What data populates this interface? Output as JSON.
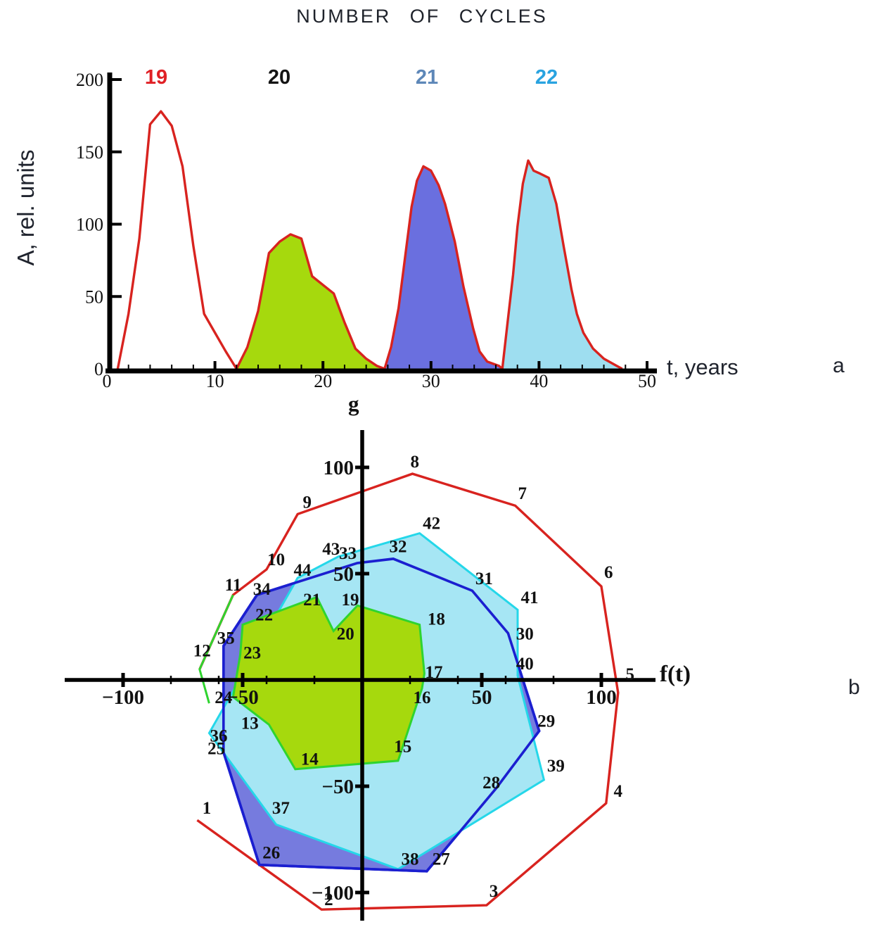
{
  "title": "NUMBER OF CYCLES",
  "chart_data": {
    "panel_a": {
      "type": "area",
      "ylabel": "A, rel. units",
      "xlabel": "t, years",
      "corner": "a",
      "xlim": [
        0,
        50
      ],
      "ylim": [
        0,
        200
      ],
      "xticks": [
        0,
        10,
        20,
        30,
        40,
        50
      ],
      "yticks": [
        0,
        50,
        100,
        150,
        200
      ],
      "xtick_minor_step": 2,
      "line_color": "#d8231f",
      "cycle_headers": [
        {
          "text": "19",
          "color": "#e02126"
        },
        {
          "text": "20",
          "color": "#141414"
        },
        {
          "text": "21",
          "color": "#5d87b8"
        },
        {
          "text": "22",
          "color": "#29a3e0"
        }
      ],
      "series": [
        {
          "name": "cycle 19",
          "fill": "none",
          "points": [
            [
              1,
              0
            ],
            [
              2,
              38
            ],
            [
              3,
              90
            ],
            [
              4,
              169
            ],
            [
              5,
              178
            ],
            [
              6,
              168
            ],
            [
              7,
              140
            ],
            [
              8,
              85
            ],
            [
              9,
              38
            ],
            [
              10,
              25
            ],
            [
              11,
              12
            ],
            [
              12,
              0
            ]
          ]
        },
        {
          "name": "cycle 20",
          "fill": "#a6d90d",
          "points": [
            [
              12,
              0
            ],
            [
              13,
              15
            ],
            [
              14,
              40
            ],
            [
              15,
              80
            ],
            [
              16,
              88
            ],
            [
              17,
              93
            ],
            [
              18,
              90
            ],
            [
              19,
              64
            ],
            [
              20,
              58
            ],
            [
              21,
              52
            ],
            [
              22,
              32
            ],
            [
              23,
              14
            ],
            [
              24,
              7
            ],
            [
              25,
              2
            ],
            [
              25.7,
              0
            ]
          ]
        },
        {
          "name": "cycle 21",
          "fill": "#6a6fdf",
          "points": [
            [
              25.7,
              0
            ],
            [
              26.3,
              15
            ],
            [
              27,
              42
            ],
            [
              27.7,
              83
            ],
            [
              28.2,
              112
            ],
            [
              28.7,
              130
            ],
            [
              29.3,
              140
            ],
            [
              30,
              137
            ],
            [
              30.7,
              127
            ],
            [
              31.3,
              114
            ],
            [
              32.2,
              88
            ],
            [
              33,
              57
            ],
            [
              33.9,
              28
            ],
            [
              34.5,
              12
            ],
            [
              35.2,
              5
            ],
            [
              36.3,
              2
            ],
            [
              36.6,
              0
            ]
          ]
        },
        {
          "name": "cycle 22",
          "fill": "#9edef0",
          "points": [
            [
              36.6,
              0
            ],
            [
              37.1,
              33
            ],
            [
              37.6,
              65
            ],
            [
              38,
              98
            ],
            [
              38.5,
              128
            ],
            [
              39,
              144
            ],
            [
              39.5,
              137
            ],
            [
              40.1,
              135
            ],
            [
              40.9,
              132
            ],
            [
              41.6,
              114
            ],
            [
              42.3,
              84
            ],
            [
              43,
              55
            ],
            [
              43.5,
              38
            ],
            [
              44.1,
              25
            ],
            [
              45,
              14
            ],
            [
              46,
              7
            ],
            [
              47.2,
              2
            ],
            [
              47.7,
              0
            ]
          ]
        }
      ]
    },
    "panel_b": {
      "type": "phase-portrait",
      "xlabel": "f(t)",
      "ylabel": "g",
      "corner": "b",
      "xlim": [
        -124,
        122
      ],
      "ylim": [
        -113,
        116
      ],
      "xticks": [
        -100,
        -50,
        50,
        100
      ],
      "xticks_minor": [
        -80,
        -60,
        -40,
        -20,
        20,
        40,
        60,
        80
      ],
      "yticks": [
        -100,
        -50,
        50,
        100
      ],
      "polygons": [
        {
          "name": "cycle 21",
          "stroke": "#1b1fd0",
          "fill": "#767bde",
          "closed": true,
          "restroke": true,
          "points": [
            {
              "n": 25,
              "x": -58,
              "y": -34,
              "lx": -61,
              "ly": -32
            },
            {
              "n": 26,
              "x": -43,
              "y": -87,
              "lx": -38,
              "ly": -81
            },
            {
              "n": 27,
              "x": 27,
              "y": -90,
              "lx": 33,
              "ly": -84
            },
            {
              "n": 28,
              "x": 56,
              "y": -51,
              "lx": 54,
              "ly": -48
            },
            {
              "n": 29,
              "x": 74,
              "y": -24,
              "lx": 77,
              "ly": -19
            },
            {
              "n": 30,
              "x": 61,
              "y": 22,
              "lx": 68,
              "ly": 22
            },
            {
              "n": 31,
              "x": 46,
              "y": 42,
              "lx": 51,
              "ly": 48
            },
            {
              "n": 32,
              "x": 13,
              "y": 57,
              "lx": 15,
              "ly": 63
            },
            {
              "n": 33,
              "x": -2,
              "y": 55,
              "lx": -6,
              "ly": 60
            },
            {
              "n": 34,
              "x": -44,
              "y": 40,
              "lx": -42,
              "ly": 43
            },
            {
              "n": 35,
              "x": -58,
              "y": 16,
              "lx": -57,
              "ly": 20
            }
          ]
        },
        {
          "name": "cycle 22",
          "stroke": "#25d7e9",
          "fill": "#a6e6f4",
          "closed": true,
          "points": [
            {
              "n": 36,
              "x": -64,
              "y": -25,
              "lx": -60,
              "ly": -26
            },
            {
              "n": 37,
              "x": -36,
              "y": -68,
              "lx": -34,
              "ly": -60
            },
            {
              "n": 38,
              "x": 15,
              "y": -89,
              "lx": 20,
              "ly": -84
            },
            {
              "n": 39,
              "x": 76,
              "y": -47,
              "lx": 81,
              "ly": -40
            },
            {
              "n": 40,
              "x": 65,
              "y": 2,
              "lx": 68,
              "ly": 8
            },
            {
              "n": 41,
              "x": 65,
              "y": 33,
              "lx": 70,
              "ly": 39
            },
            {
              "n": 42,
              "x": 24,
              "y": 69,
              "lx": 29,
              "ly": 74
            },
            {
              "n": 43,
              "x": -10,
              "y": 58,
              "lx": -13,
              "ly": 62
            },
            {
              "n": 44,
              "x": -27,
              "y": 48,
              "lx": -25,
              "ly": 52
            }
          ]
        },
        {
          "name": "cycle 20",
          "stroke": "#2fd42f",
          "fill": "#a6d90d",
          "closed": true,
          "points": [
            {
              "n": 13,
              "x": -39,
              "y": -21,
              "lx": -47,
              "ly": -20
            },
            {
              "n": 14,
              "x": -28,
              "y": -42,
              "lx": -22,
              "ly": -37
            },
            {
              "n": 15,
              "x": 15,
              "y": -38,
              "lx": 17,
              "ly": -31
            },
            {
              "n": 16,
              "x": 25,
              "y": -4,
              "lx": 25,
              "ly": -8
            },
            {
              "n": 17,
              "x": 26,
              "y": 3,
              "lx": 30,
              "ly": 4
            },
            {
              "n": 18,
              "x": 24,
              "y": 26,
              "lx": 31,
              "ly": 29
            },
            {
              "n": 19,
              "x": -2,
              "y": 35,
              "lx": -5,
              "ly": 38
            },
            {
              "n": 20,
              "x": -12,
              "y": 23,
              "lx": -7,
              "ly": 22
            },
            {
              "n": 21,
              "x": -19,
              "y": 39,
              "lx": -21,
              "ly": 38
            },
            {
              "n": 22,
              "x": -50,
              "y": 26,
              "lx": -41,
              "ly": 31
            },
            {
              "n": 23,
              "x": -51,
              "y": 12,
              "lx": -46,
              "ly": 13
            },
            {
              "n": 24,
              "x": -54,
              "y": -8,
              "lx": -58,
              "ly": -8
            }
          ]
        },
        {
          "name": "cycle 19",
          "stroke": "#d8231f",
          "fill": "none",
          "closed": false,
          "points": [
            {
              "n": 1,
              "x": -69,
              "y": -66,
              "lx": -65,
              "ly": -60
            },
            {
              "n": 2,
              "x": -17,
              "y": -108,
              "lx": -14,
              "ly": -103
            },
            {
              "n": 3,
              "x": 52,
              "y": -106,
              "lx": 55,
              "ly": -99
            },
            {
              "n": 4,
              "x": 102,
              "y": -58,
              "lx": 107,
              "ly": -52
            },
            {
              "n": 5,
              "x": 107,
              "y": -6,
              "lx": 112,
              "ly": 3
            },
            {
              "n": 6,
              "x": 100,
              "y": 44,
              "lx": 103,
              "ly": 51
            },
            {
              "n": 7,
              "x": 64,
              "y": 82,
              "lx": 67,
              "ly": 88
            },
            {
              "n": 8,
              "x": 21,
              "y": 97,
              "lx": 22,
              "ly": 103
            },
            {
              "n": 9,
              "x": -27,
              "y": 78,
              "lx": -23,
              "ly": 84
            },
            {
              "n": 10,
              "x": -40,
              "y": 52,
              "lx": -36,
              "ly": 57
            },
            {
              "n": 11,
              "x": -54,
              "y": 40,
              "lx": -54,
              "ly": 45
            },
            {
              "n": 12,
              "x": -68,
              "y": 5,
              "lx": -67,
              "ly": 14
            }
          ]
        },
        {
          "name": "segment 11-12",
          "stroke": "#2fd42f",
          "fill": "none",
          "closed": false,
          "points": [
            {
              "x": -54,
              "y": 40
            },
            {
              "x": -68,
              "y": 5
            },
            {
              "x": -64,
              "y": -11
            }
          ]
        }
      ]
    }
  }
}
